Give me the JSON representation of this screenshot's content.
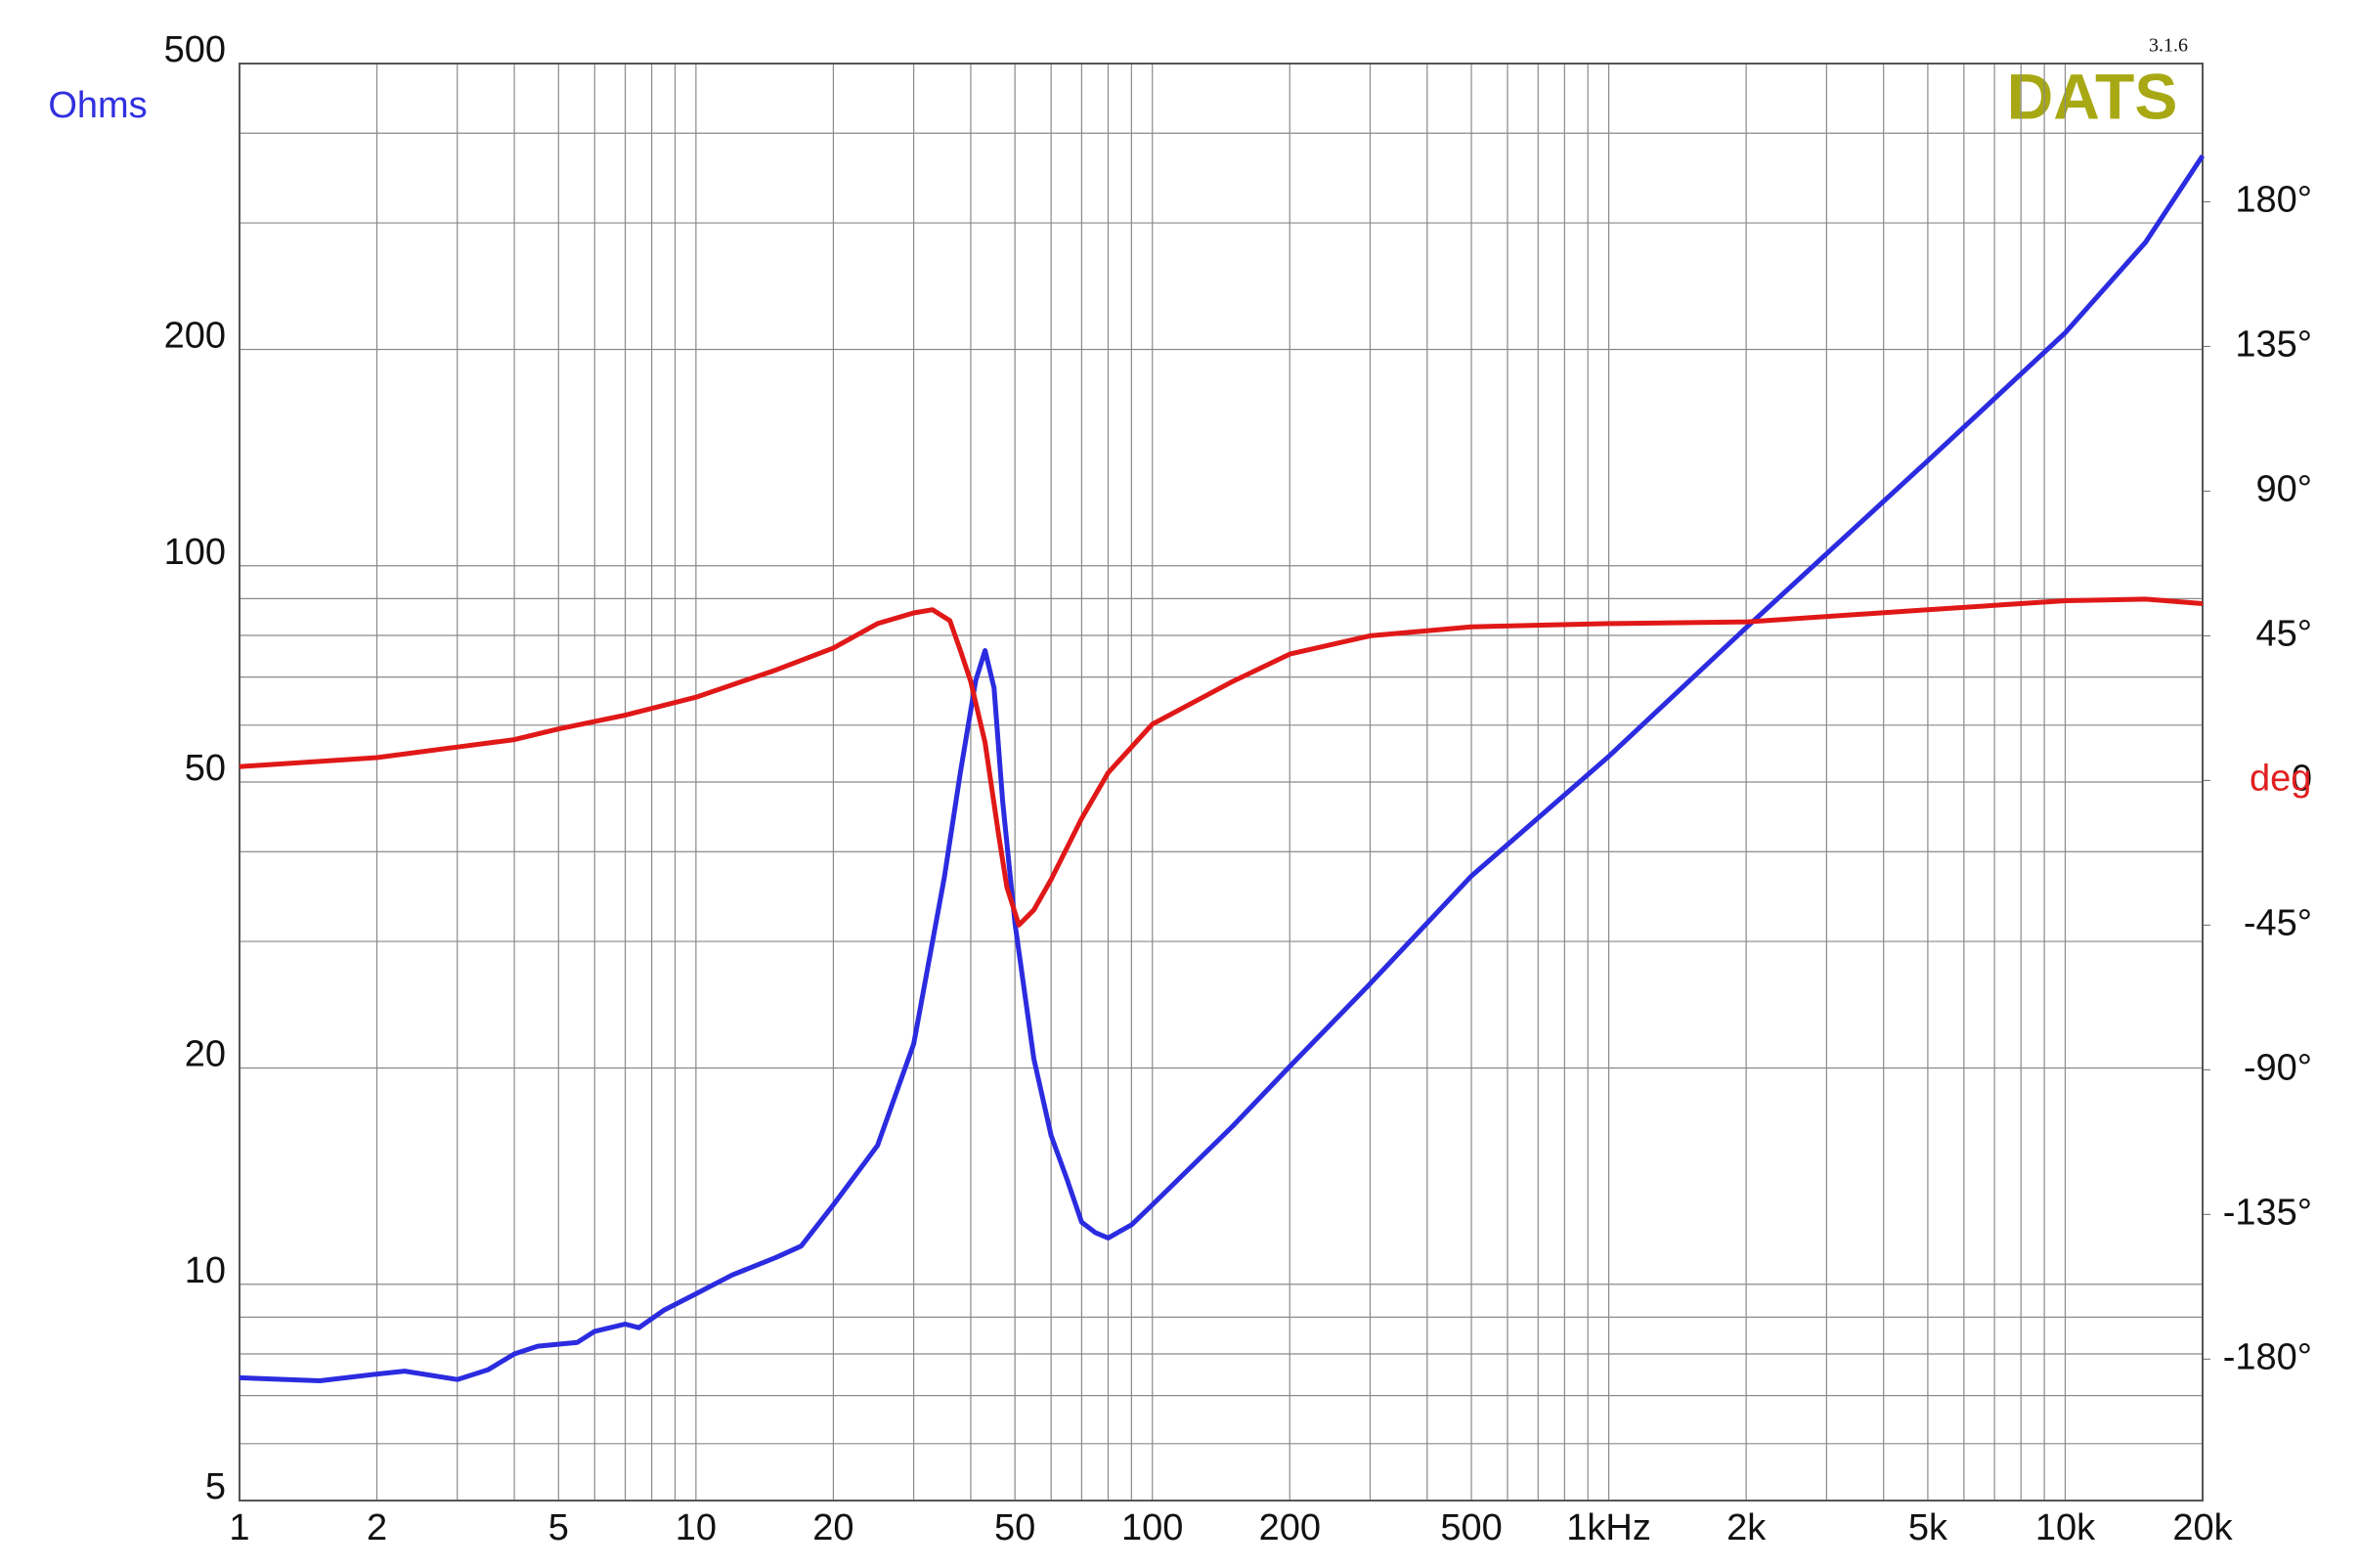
{
  "chart_data": {
    "type": "line",
    "logo": "DATS",
    "version": "3.1.6",
    "ylabel": "Ohms",
    "y2label": "deg",
    "log_x": true,
    "log_y": true,
    "grid": true,
    "xlim": [
      1,
      20000
    ],
    "xticks": [
      1,
      2,
      5,
      10,
      20,
      50,
      100,
      200,
      500,
      {
        "value": 1000,
        "label": "1kHz"
      },
      {
        "value": 2000,
        "label": "2k"
      },
      {
        "value": 5000,
        "label": "5k"
      },
      {
        "value": 10000,
        "label": "10k"
      },
      {
        "value": 20000,
        "label": "20k"
      }
    ],
    "xminor": [
      3,
      4,
      6,
      7,
      8,
      9,
      30,
      40,
      60,
      70,
      80,
      90,
      300,
      400,
      600,
      700,
      800,
      900,
      3000,
      4000,
      6000,
      7000,
      8000,
      9000
    ],
    "ylim": [
      5,
      500
    ],
    "yticks": [
      5,
      10,
      20,
      50,
      100,
      200,
      500
    ],
    "yminor": [
      6,
      7,
      8,
      9,
      30,
      40,
      60,
      70,
      80,
      90,
      300,
      400
    ],
    "y2lim": [
      -224,
      223
    ],
    "y2ticks": [
      {
        "value": 180,
        "label": "180°"
      },
      {
        "value": 135,
        "label": "135°"
      },
      {
        "value": 90,
        "label": "90°"
      },
      {
        "value": 45,
        "label": "45°"
      },
      0,
      {
        "value": -45,
        "label": "-45°"
      },
      {
        "value": -90,
        "label": "-90°"
      },
      {
        "value": -135,
        "label": "-135°"
      },
      {
        "value": -180,
        "label": "-180°"
      }
    ],
    "series": [
      {
        "color": "#2b2be0",
        "x": [
          1,
          1.5,
          2,
          2.3,
          3,
          3.5,
          4,
          4.5,
          5.5,
          6,
          7,
          7.5,
          8.5,
          10,
          12,
          15,
          17,
          20,
          25,
          30,
          35,
          38,
          41,
          43,
          45,
          47,
          50,
          55,
          60,
          65,
          70,
          75,
          80,
          90,
          100,
          150,
          200,
          300,
          500,
          1000,
          2000,
          5000,
          10000,
          15000,
          20000
        ],
        "values": [
          7.41,
          7.34,
          7.5,
          7.57,
          7.37,
          7.6,
          8.0,
          8.2,
          8.3,
          8.6,
          8.8,
          8.7,
          9.2,
          9.7,
          10.3,
          10.9,
          11.3,
          12.9,
          15.6,
          21.6,
          36.8,
          51.7,
          69.2,
          76.2,
          67.6,
          47,
          31.8,
          20.6,
          16.1,
          14,
          12.2,
          11.8,
          11.6,
          12.1,
          12.9,
          16.6,
          20.1,
          26.2,
          37.0,
          54.3,
          82,
          140,
          211,
          282,
          372
        ]
      },
      {
        "color": "#e01818",
        "axis": "y2",
        "x": [
          1,
          2,
          3,
          4,
          5,
          7,
          10,
          15,
          20,
          25,
          30,
          33,
          36,
          38,
          40,
          43,
          46,
          48,
          51,
          55,
          60,
          70,
          80,
          100,
          150,
          200,
          300,
          500,
          1000,
          2000,
          5000,
          10000,
          15000,
          20000
        ],
        "values": [
          4.3,
          7.1,
          10.4,
          12.7,
          16,
          20.3,
          25.9,
          34.4,
          41.2,
          48.8,
          52.1,
          53.1,
          49.7,
          40.3,
          30.8,
          11.8,
          -16.6,
          -33.2,
          -45,
          -40.3,
          -30.8,
          -11.8,
          2.4,
          17.5,
          30.8,
          39.3,
          45,
          47.8,
          48.8,
          49.3,
          53.1,
          55.9,
          56.4,
          55
        ]
      }
    ]
  }
}
